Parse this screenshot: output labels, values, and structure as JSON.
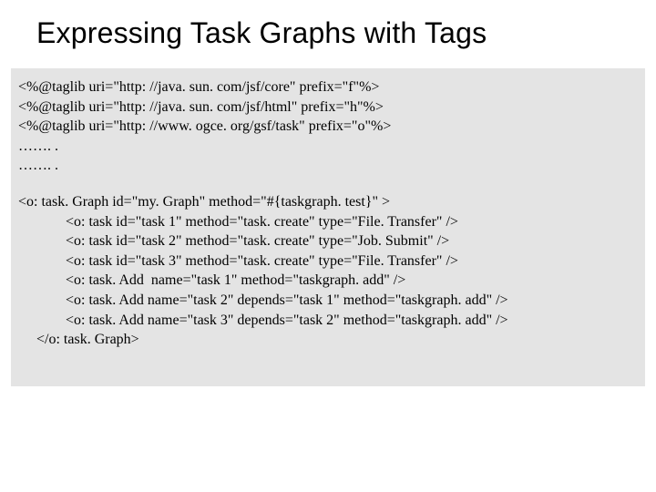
{
  "slide": {
    "title": "Expressing Task Graphs with Tags",
    "background_color": "#ffffff",
    "title_fontsize": 32,
    "title_color": "#000000",
    "code_panel": {
      "background_color": "#e4e4e4",
      "font_family": "Times New Roman",
      "font_size": 16,
      "text_color": "#000000",
      "lines": [
        "<%@taglib uri=\"http: //java. sun. com/jsf/core\" prefix=\"f\"%>",
        "<%@taglib uri=\"http: //java. sun. com/jsf/html\" prefix=\"h\"%>",
        "<%@taglib uri=\"http: //www. ogce. org/gsf/task\" prefix=\"o\"%>",
        "……. .",
        "……. .",
        "",
        "<o: task. Graph id=\"my. Graph\" method=\"#{taskgraph. test}\" >",
        "<o: task id=\"task 1\" method=\"task. create\" type=\"File. Transfer\" />",
        "<o: task id=\"task 2\" method=\"task. create\" type=\"Job. Submit\" />",
        "<o: task id=\"task 3\" method=\"task. create\" type=\"File. Transfer\" />",
        "<o: task. Add  name=\"task 1\" method=\"taskgraph. add\" />",
        "<o: task. Add name=\"task 2\" depends=\"task 1\" method=\"taskgraph. add\" />",
        "<o: task. Add name=\"task 3\" depends=\"task 2\" method=\"taskgraph. add\" />",
        "</o: task. Graph>"
      ]
    }
  }
}
